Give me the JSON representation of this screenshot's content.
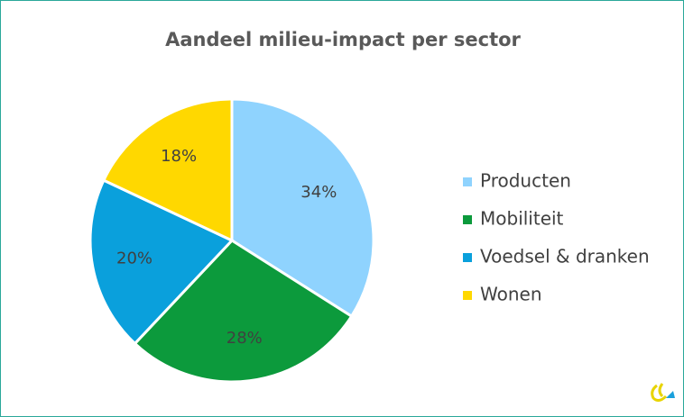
{
  "chart_data": {
    "type": "pie",
    "title": "Aandeel milieu-impact per sector",
    "categories": [
      "Producten",
      "Mobiliteit",
      "Voedsel & dranken",
      "Wonen"
    ],
    "values": [
      34,
      28,
      20,
      18
    ],
    "value_labels": [
      "34%",
      "28%",
      "20%",
      "18%"
    ],
    "colors": [
      "#8fd3fe",
      "#0c9a3c",
      "#0aa0dc",
      "#ffd800"
    ],
    "legend": "right"
  }
}
